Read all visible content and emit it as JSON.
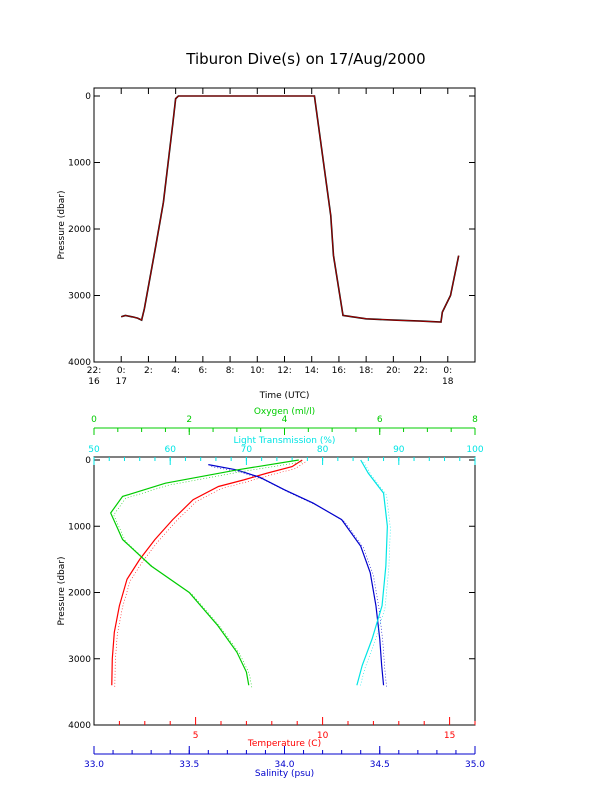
{
  "page": {
    "title": "Tiburon Dive(s) on 17/Aug/2000"
  },
  "colors": {
    "axis": "#000000",
    "dive": "#000000",
    "dive_red": "#cc0000",
    "temperature": "#ff0000",
    "salinity": "#0000cc",
    "oxygen": "#00cc00",
    "transmission": "#00e5e5"
  },
  "chart_data": [
    {
      "type": "line",
      "title": "",
      "xlabel": "Time (UTC)",
      "ylabel": "Pressure (dbar)",
      "x_unit": "hours since 22:00 16/Aug/2000",
      "xlim": [
        0,
        28
      ],
      "ylim": [
        4000,
        0
      ],
      "x_ticks": [
        {
          "v": 0,
          "l1": "22:",
          "l2": "16"
        },
        {
          "v": 2,
          "l1": "0:",
          "l2": "17"
        },
        {
          "v": 4,
          "l1": "2:",
          "l2": ""
        },
        {
          "v": 6,
          "l1": "4:",
          "l2": ""
        },
        {
          "v": 8,
          "l1": "6:",
          "l2": ""
        },
        {
          "v": 10,
          "l1": "8:",
          "l2": ""
        },
        {
          "v": 12,
          "l1": "10:",
          "l2": ""
        },
        {
          "v": 14,
          "l1": "12:",
          "l2": ""
        },
        {
          "v": 16,
          "l1": "14:",
          "l2": ""
        },
        {
          "v": 18,
          "l1": "16:",
          "l2": ""
        },
        {
          "v": 20,
          "l1": "18:",
          "l2": ""
        },
        {
          "v": 22,
          "l1": "20:",
          "l2": ""
        },
        {
          "v": 24,
          "l1": "22:",
          "l2": ""
        },
        {
          "v": 26,
          "l1": "0:",
          "l2": "18"
        }
      ],
      "y_ticks": [
        0,
        1000,
        2000,
        3000,
        4000
      ],
      "series": [
        {
          "values": [
            [
              2.0,
              3320
            ],
            [
              2.3,
              3300
            ],
            [
              2.8,
              3320
            ],
            [
              3.2,
              3340
            ],
            [
              3.5,
              3370
            ],
            [
              3.7,
              3200
            ],
            [
              4.5,
              2300
            ],
            [
              5.1,
              1600
            ],
            [
              5.8,
              400
            ],
            [
              6.0,
              40
            ],
            [
              6.2,
              0
            ],
            [
              15.0,
              0
            ],
            [
              16.2,
              0
            ],
            [
              17.4,
              1800
            ],
            [
              17.6,
              2400
            ],
            [
              18.3,
              3300
            ],
            [
              19,
              3320
            ],
            [
              20,
              3350
            ],
            [
              22,
              3370
            ],
            [
              24,
              3385
            ],
            [
              25.5,
              3400
            ],
            [
              25.6,
              3250
            ],
            [
              26.2,
              3000
            ],
            [
              26.8,
              2400
            ]
          ]
        }
      ]
    },
    {
      "type": "line",
      "title": "",
      "ylabel": "Pressure (dbar)",
      "ylim": [
        4000,
        0
      ],
      "y_ticks": [
        0,
        1000,
        2000,
        3000,
        4000
      ],
      "axes": {
        "temperature": {
          "label": "Temperature (C)",
          "lim": [
            1,
            16
          ],
          "ticks": [
            5,
            10,
            15
          ],
          "minor": [
            2,
            3,
            4,
            6,
            7,
            8,
            9,
            11,
            12,
            13,
            14,
            16
          ]
        },
        "salinity": {
          "label": "Salinity (psu)",
          "lim": [
            33.0,
            35.0
          ],
          "ticks": [
            "33.0",
            "33.5",
            "34.0",
            "34.5",
            "35.0"
          ],
          "minor_step": 0.1
        },
        "oxygen": {
          "label": "Oxygen (ml/l)",
          "lim": [
            0,
            8
          ],
          "ticks": [
            0,
            2,
            4,
            6,
            8
          ]
        },
        "transmission": {
          "label": "Light Transmission (%)",
          "lim": [
            50,
            100
          ],
          "ticks": [
            50,
            60,
            70,
            80,
            90,
            100
          ]
        }
      },
      "series": [
        {
          "name": "Temperature (C)",
          "axis": "temperature",
          "values": [
            [
              9.2,
              0
            ],
            [
              8.8,
              100
            ],
            [
              7.8,
              200
            ],
            [
              6.9,
              300
            ],
            [
              5.9,
              400
            ],
            [
              4.9,
              600
            ],
            [
              4.1,
              900
            ],
            [
              3.4,
              1200
            ],
            [
              2.8,
              1500
            ],
            [
              2.3,
              1800
            ],
            [
              2.0,
              2200
            ],
            [
              1.8,
              2600
            ],
            [
              1.72,
              3000
            ],
            [
              1.7,
              3400
            ]
          ]
        },
        {
          "name": "Salinity (psu)",
          "axis": "salinity",
          "values": [
            [
              33.6,
              70
            ],
            [
              33.75,
              150
            ],
            [
              33.87,
              260
            ],
            [
              34.0,
              450
            ],
            [
              34.15,
              650
            ],
            [
              34.3,
              900
            ],
            [
              34.4,
              1300
            ],
            [
              34.45,
              1700
            ],
            [
              34.48,
              2200
            ],
            [
              34.5,
              2700
            ],
            [
              34.51,
              3100
            ],
            [
              34.52,
              3400
            ]
          ]
        },
        {
          "name": "Oxygen (ml/l)",
          "axis": "oxygen",
          "values": [
            [
              4.3,
              0
            ],
            [
              3.0,
              150
            ],
            [
              1.5,
              350
            ],
            [
              0.6,
              550
            ],
            [
              0.35,
              800
            ],
            [
              0.6,
              1200
            ],
            [
              1.2,
              1600
            ],
            [
              2.0,
              2000
            ],
            [
              2.6,
              2500
            ],
            [
              3.0,
              2900
            ],
            [
              3.2,
              3200
            ],
            [
              3.25,
              3400
            ]
          ]
        },
        {
          "name": "Light Transmission (%)",
          "axis": "transmission",
          "values": [
            [
              85,
              0
            ],
            [
              86,
              200
            ],
            [
              88,
              500
            ],
            [
              88.5,
              1000
            ],
            [
              88.3,
              1600
            ],
            [
              87.8,
              2200
            ],
            [
              86.5,
              2700
            ],
            [
              85.2,
              3100
            ],
            [
              84.5,
              3400
            ]
          ]
        }
      ]
    }
  ]
}
